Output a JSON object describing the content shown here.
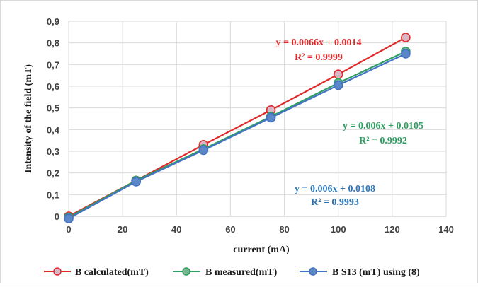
{
  "chart_data": {
    "type": "line",
    "title": "",
    "xlabel": "current (mA)",
    "ylabel": "Intensity of the field (mT)",
    "xlim": [
      0,
      140
    ],
    "ylim": [
      0,
      0.9
    ],
    "x_ticks": [
      "0",
      "20",
      "40",
      "60",
      "80",
      "100",
      "120",
      "140"
    ],
    "y_ticks": [
      "0",
      "0,1",
      "0,2",
      "0,3",
      "0,4",
      "0,5",
      "0,6",
      "0,7",
      "0,8",
      "0,9"
    ],
    "grid": true,
    "legend_position": "bottom",
    "series": [
      {
        "name": "B calculated(mT)",
        "color": "#e02a2a",
        "marker_fill": "#d9b6c4",
        "x": [
          0,
          25,
          50,
          75,
          100,
          125
        ],
        "y": [
          0.0,
          0.165,
          0.33,
          0.49,
          0.655,
          0.825
        ],
        "equation": "y = 0.0066x + 0.0014",
        "r2": "R² = 0.9999"
      },
      {
        "name": "B measured(mT)",
        "color": "#2e9e62",
        "marker_fill": "#79b98f",
        "x": [
          0,
          25,
          50,
          75,
          100,
          125
        ],
        "y": [
          -0.005,
          0.165,
          0.31,
          0.46,
          0.615,
          0.76
        ],
        "equation": "y = 0.006x + 0.0105",
        "r2": "R² = 0.9992"
      },
      {
        "name": "B S13 (mT) using (8)",
        "color": "#4472c4",
        "marker_fill": "#5b87c8",
        "x": [
          0,
          25,
          50,
          75,
          100,
          125
        ],
        "y": [
          -0.01,
          0.16,
          0.305,
          0.455,
          0.605,
          0.75
        ],
        "equation": "y = 0.006x + 0.0108",
        "r2": "R² = 0.9993"
      }
    ]
  }
}
